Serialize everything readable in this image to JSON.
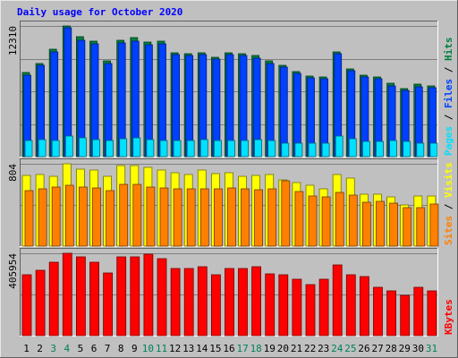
{
  "page_title": "Daily usage for October 2020",
  "colors": {
    "background": "#c0c0c0",
    "panel": "#c0c0c0",
    "title": "#0000ff",
    "hits": "#008040",
    "files": "#0040ff",
    "pages": "#00e0ff",
    "visits": "#ffff00",
    "sites": "#ff8000",
    "kbytes": "#ff0000",
    "day_weekday": "#000000",
    "day_weekend": "#00805c",
    "label_text": "#000000"
  },
  "chart_data": {
    "type": "bar",
    "title": "Daily usage for October 2020",
    "categories": [
      "1",
      "2",
      "3",
      "4",
      "5",
      "6",
      "7",
      "8",
      "9",
      "10",
      "11",
      "12",
      "13",
      "14",
      "15",
      "16",
      "17",
      "18",
      "19",
      "20",
      "21",
      "22",
      "23",
      "24",
      "25",
      "26",
      "27",
      "28",
      "29",
      "30",
      "31"
    ],
    "weekend_days": [
      "3",
      "4",
      "10",
      "11",
      "17",
      "18",
      "24",
      "25",
      "31"
    ],
    "panels": [
      {
        "id": "hits_files_pages",
        "ymax_label": "12310",
        "ylim": [
          0,
          12310
        ],
        "legend": [
          {
            "text": "Pages",
            "color": "#00e0ff"
          },
          {
            "text": " / ",
            "color": "#000000"
          },
          {
            "text": "Files",
            "color": "#0040ff"
          },
          {
            "text": " / ",
            "color": "#000000"
          },
          {
            "text": "Hits",
            "color": "#008040"
          }
        ],
        "series": [
          {
            "name": "Hits",
            "color": "#008040",
            "values": [
              7900,
              8800,
              10100,
              12310,
              11300,
              10900,
              9000,
              11000,
              11200,
              10800,
              10900,
              9800,
              9700,
              9800,
              9400,
              9800,
              9700,
              9500,
              9000,
              8600,
              8000,
              7600,
              7500,
              9900,
              8300,
              7700,
              7500,
              6900,
              6400,
              6800,
              6700
            ]
          },
          {
            "name": "Files",
            "color": "#0040ff",
            "values": [
              7700,
              8600,
              9900,
              12100,
              11000,
              10600,
              8800,
              10700,
              10900,
              10500,
              10600,
              9600,
              9500,
              9600,
              9200,
              9600,
              9500,
              9300,
              8800,
              8400,
              7800,
              7400,
              7300,
              9700,
              8100,
              7500,
              7300,
              6700,
              6200,
              6600,
              6500
            ]
          },
          {
            "name": "Pages",
            "color": "#00e0ff",
            "values": [
              1500,
              1600,
              1500,
              1900,
              1800,
              1600,
              1500,
              1700,
              1800,
              1600,
              1500,
              1500,
              1500,
              1600,
              1500,
              1500,
              1500,
              1600,
              1500,
              1300,
              1300,
              1300,
              1300,
              1900,
              1700,
              1400,
              1400,
              1500,
              1400,
              1300,
              1300
            ]
          }
        ]
      },
      {
        "id": "visits_sites",
        "ymax_label": "804",
        "ylim": [
          0,
          804
        ],
        "legend": [
          {
            "text": "Sites",
            "color": "#ff8000"
          },
          {
            "text": " / ",
            "color": "#000000"
          },
          {
            "text": "Visits",
            "color": "#ffff00"
          }
        ],
        "series": [
          {
            "name": "Visits",
            "color": "#ffff00",
            "values": [
              690,
              700,
              680,
              800,
              750,
              740,
              680,
              790,
              790,
              770,
              740,
              720,
              700,
              740,
              710,
              720,
              680,
              690,
              700,
              650,
              620,
              590,
              560,
              700,
              660,
              510,
              510,
              480,
              400,
              490,
              490
            ]
          },
          {
            "name": "Sites",
            "color": "#ff8000",
            "values": [
              540,
              560,
              580,
              590,
              580,
              570,
              540,
              600,
              600,
              580,
              570,
              560,
              560,
              560,
              560,
              570,
              560,
              550,
              560,
              640,
              530,
              490,
              480,
              520,
              500,
              430,
              440,
              420,
              380,
              380,
              410
            ]
          }
        ]
      },
      {
        "id": "kbytes",
        "ymax_label": "405954",
        "ylim": [
          0,
          405954
        ],
        "legend": [
          {
            "text": "KBytes",
            "color": "#ff0000"
          }
        ],
        "series": [
          {
            "name": "KBytes",
            "color": "#ff0000",
            "values": [
              300000,
              320000,
              360000,
              405954,
              390000,
              360000,
              310000,
              390000,
              390000,
              400000,
              380000,
              330000,
              330000,
              340000,
              300000,
              330000,
              330000,
              340000,
              305000,
              300000,
              280000,
              250000,
              280000,
              350000,
              300000,
              290000,
              240000,
              220000,
              200000,
              240000,
              220000
            ]
          }
        ]
      }
    ]
  }
}
